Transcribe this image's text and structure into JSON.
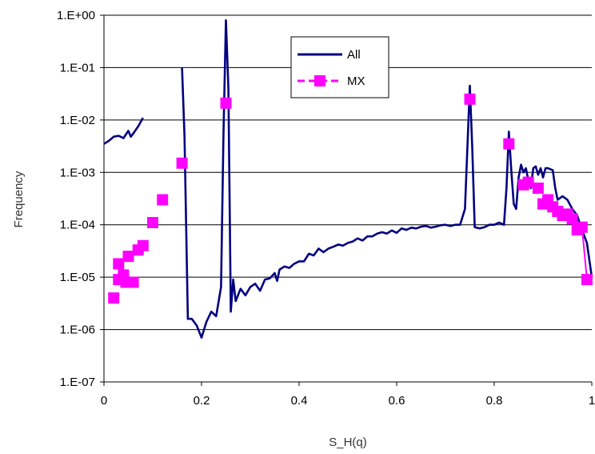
{
  "chart_data": {
    "type": "line",
    "xlabel": "S_H(q)",
    "ylabel": "Frequency",
    "xlim": [
      0,
      1
    ],
    "ylim": [
      1e-07,
      1
    ],
    "y_scale": "log",
    "grid": "horizontal",
    "legend_position": "top-center",
    "x_ticks": [
      {
        "v": 0,
        "label": "0"
      },
      {
        "v": 0.2,
        "label": "0.2"
      },
      {
        "v": 0.4,
        "label": "0.4"
      },
      {
        "v": 0.6,
        "label": "0.6"
      },
      {
        "v": 0.8,
        "label": "0.8"
      },
      {
        "v": 1,
        "label": "1"
      }
    ],
    "y_ticks": [
      {
        "v": 1,
        "label": "1.E+00"
      },
      {
        "v": 0.1,
        "label": "1.E-01"
      },
      {
        "v": 0.01,
        "label": "1.E-02"
      },
      {
        "v": 0.001,
        "label": "1.E-03"
      },
      {
        "v": 0.0001,
        "label": "1.E-04"
      },
      {
        "v": 1e-05,
        "label": "1.E-05"
      },
      {
        "v": 1e-06,
        "label": "1.E-06"
      },
      {
        "v": 1e-07,
        "label": "1.E-07"
      }
    ],
    "series": [
      {
        "name": "All",
        "color": "#000080",
        "style": "line",
        "segments": [
          [
            [
              0.0,
              0.0035
            ],
            [
              0.01,
              0.004
            ],
            [
              0.02,
              0.0048
            ],
            [
              0.03,
              0.005
            ],
            [
              0.04,
              0.0045
            ],
            [
              0.05,
              0.0062
            ],
            [
              0.055,
              0.0048
            ],
            [
              0.06,
              0.0055
            ],
            [
              0.07,
              0.0075
            ],
            [
              0.08,
              0.011
            ]
          ],
          [
            [
              0.16,
              0.1
            ],
            [
              0.165,
              0.005
            ],
            [
              0.172,
              1.6e-06
            ],
            [
              0.18,
              1.6e-06
            ],
            [
              0.19,
              1.2e-06
            ],
            [
              0.2,
              7e-07
            ],
            [
              0.21,
              1.4e-06
            ],
            [
              0.22,
              2.2e-06
            ],
            [
              0.23,
              1.8e-06
            ],
            [
              0.24,
              6.5e-06
            ],
            [
              0.245,
              0.005
            ],
            [
              0.25,
              0.8
            ],
            [
              0.255,
              0.04
            ],
            [
              0.26,
              2.2e-06
            ],
            [
              0.265,
              9e-06
            ],
            [
              0.27,
              3.5e-06
            ],
            [
              0.28,
              6e-06
            ],
            [
              0.29,
              4.5e-06
            ],
            [
              0.3,
              6.5e-06
            ],
            [
              0.31,
              7.5e-06
            ],
            [
              0.32,
              5.5e-06
            ],
            [
              0.33,
              9e-06
            ],
            [
              0.34,
              9.5e-06
            ],
            [
              0.35,
              1.2e-05
            ],
            [
              0.355,
              8.5e-06
            ],
            [
              0.36,
              1.4e-05
            ],
            [
              0.37,
              1.6e-05
            ],
            [
              0.38,
              1.5e-05
            ],
            [
              0.39,
              1.8e-05
            ],
            [
              0.4,
              2e-05
            ],
            [
              0.41,
              2e-05
            ],
            [
              0.42,
              2.8e-05
            ],
            [
              0.43,
              2.6e-05
            ],
            [
              0.44,
              3.5e-05
            ],
            [
              0.45,
              3e-05
            ],
            [
              0.46,
              3.5e-05
            ],
            [
              0.47,
              3.8e-05
            ],
            [
              0.48,
              4.2e-05
            ],
            [
              0.49,
              4e-05
            ],
            [
              0.5,
              4.5e-05
            ],
            [
              0.51,
              4.8e-05
            ],
            [
              0.52,
              5.5e-05
            ],
            [
              0.53,
              5e-05
            ],
            [
              0.54,
              6e-05
            ],
            [
              0.55,
              6e-05
            ],
            [
              0.56,
              6.8e-05
            ],
            [
              0.57,
              7.2e-05
            ],
            [
              0.58,
              6.8e-05
            ],
            [
              0.59,
              7.8e-05
            ],
            [
              0.6,
              7e-05
            ],
            [
              0.61,
              8.5e-05
            ],
            [
              0.62,
              8e-05
            ],
            [
              0.63,
              8.8e-05
            ],
            [
              0.64,
              8.5e-05
            ],
            [
              0.65,
              9.2e-05
            ],
            [
              0.66,
              9.5e-05
            ],
            [
              0.67,
              8.8e-05
            ],
            [
              0.68,
              9.2e-05
            ],
            [
              0.69,
              9.8e-05
            ],
            [
              0.7,
              0.0001
            ],
            [
              0.71,
              9.5e-05
            ],
            [
              0.72,
              0.0001
            ],
            [
              0.73,
              0.0001
            ],
            [
              0.74,
              0.0002
            ],
            [
              0.75,
              0.045
            ],
            [
              0.755,
              0.003
            ],
            [
              0.76,
              9e-05
            ],
            [
              0.77,
              8.5e-05
            ],
            [
              0.78,
              9e-05
            ],
            [
              0.79,
              0.0001
            ],
            [
              0.8,
              0.0001
            ],
            [
              0.81,
              0.00011
            ],
            [
              0.82,
              0.0001
            ],
            [
              0.825,
              0.0005
            ],
            [
              0.83,
              0.006
            ],
            [
              0.835,
              0.0011
            ],
            [
              0.84,
              0.00025
            ],
            [
              0.845,
              0.0002
            ],
            [
              0.85,
              0.0008
            ],
            [
              0.855,
              0.0014
            ],
            [
              0.86,
              0.001
            ],
            [
              0.865,
              0.0012
            ],
            [
              0.87,
              0.0007
            ],
            [
              0.875,
              0.0005
            ],
            [
              0.88,
              0.0012
            ],
            [
              0.885,
              0.0013
            ],
            [
              0.89,
              0.0009
            ],
            [
              0.895,
              0.0012
            ],
            [
              0.9,
              0.0008
            ],
            [
              0.905,
              0.0012
            ],
            [
              0.91,
              0.0012
            ],
            [
              0.92,
              0.0011
            ],
            [
              0.925,
              0.0005
            ],
            [
              0.93,
              0.0003
            ],
            [
              0.94,
              0.00035
            ],
            [
              0.95,
              0.0003
            ],
            [
              0.96,
              0.0002
            ],
            [
              0.97,
              0.00015
            ],
            [
              0.98,
              8e-05
            ],
            [
              0.99,
              4.5e-05
            ],
            [
              1.0,
              1e-05
            ]
          ]
        ]
      },
      {
        "name": "MX",
        "color": "#ff00ff",
        "style": "line-markers",
        "points": [
          [
            0.02,
            4e-06
          ],
          [
            0.03,
            9e-06
          ],
          [
            0.03,
            1.8e-05
          ],
          [
            0.04,
            1.1e-05
          ],
          [
            0.045,
            8e-06
          ],
          [
            0.05,
            2.5e-05
          ],
          [
            0.06,
            8e-06
          ],
          [
            0.07,
            3.3e-05
          ],
          [
            0.08,
            4e-05
          ],
          [
            0.1,
            0.00011
          ],
          [
            0.12,
            0.0003
          ],
          [
            0.16,
            0.0015
          ],
          [
            0.25,
            0.021
          ],
          [
            0.75,
            0.025
          ],
          [
            0.83,
            0.0035
          ],
          [
            0.86,
            0.00058
          ],
          [
            0.87,
            0.00065
          ],
          [
            0.89,
            0.0005
          ],
          [
            0.9,
            0.00025
          ],
          [
            0.91,
            0.0003
          ],
          [
            0.92,
            0.00022
          ],
          [
            0.93,
            0.00018
          ],
          [
            0.94,
            0.00015
          ],
          [
            0.95,
            0.00016
          ],
          [
            0.96,
            0.00013
          ],
          [
            0.97,
            8e-05
          ],
          [
            0.98,
            9e-05
          ],
          [
            0.99,
            9e-06
          ]
        ]
      }
    ]
  }
}
